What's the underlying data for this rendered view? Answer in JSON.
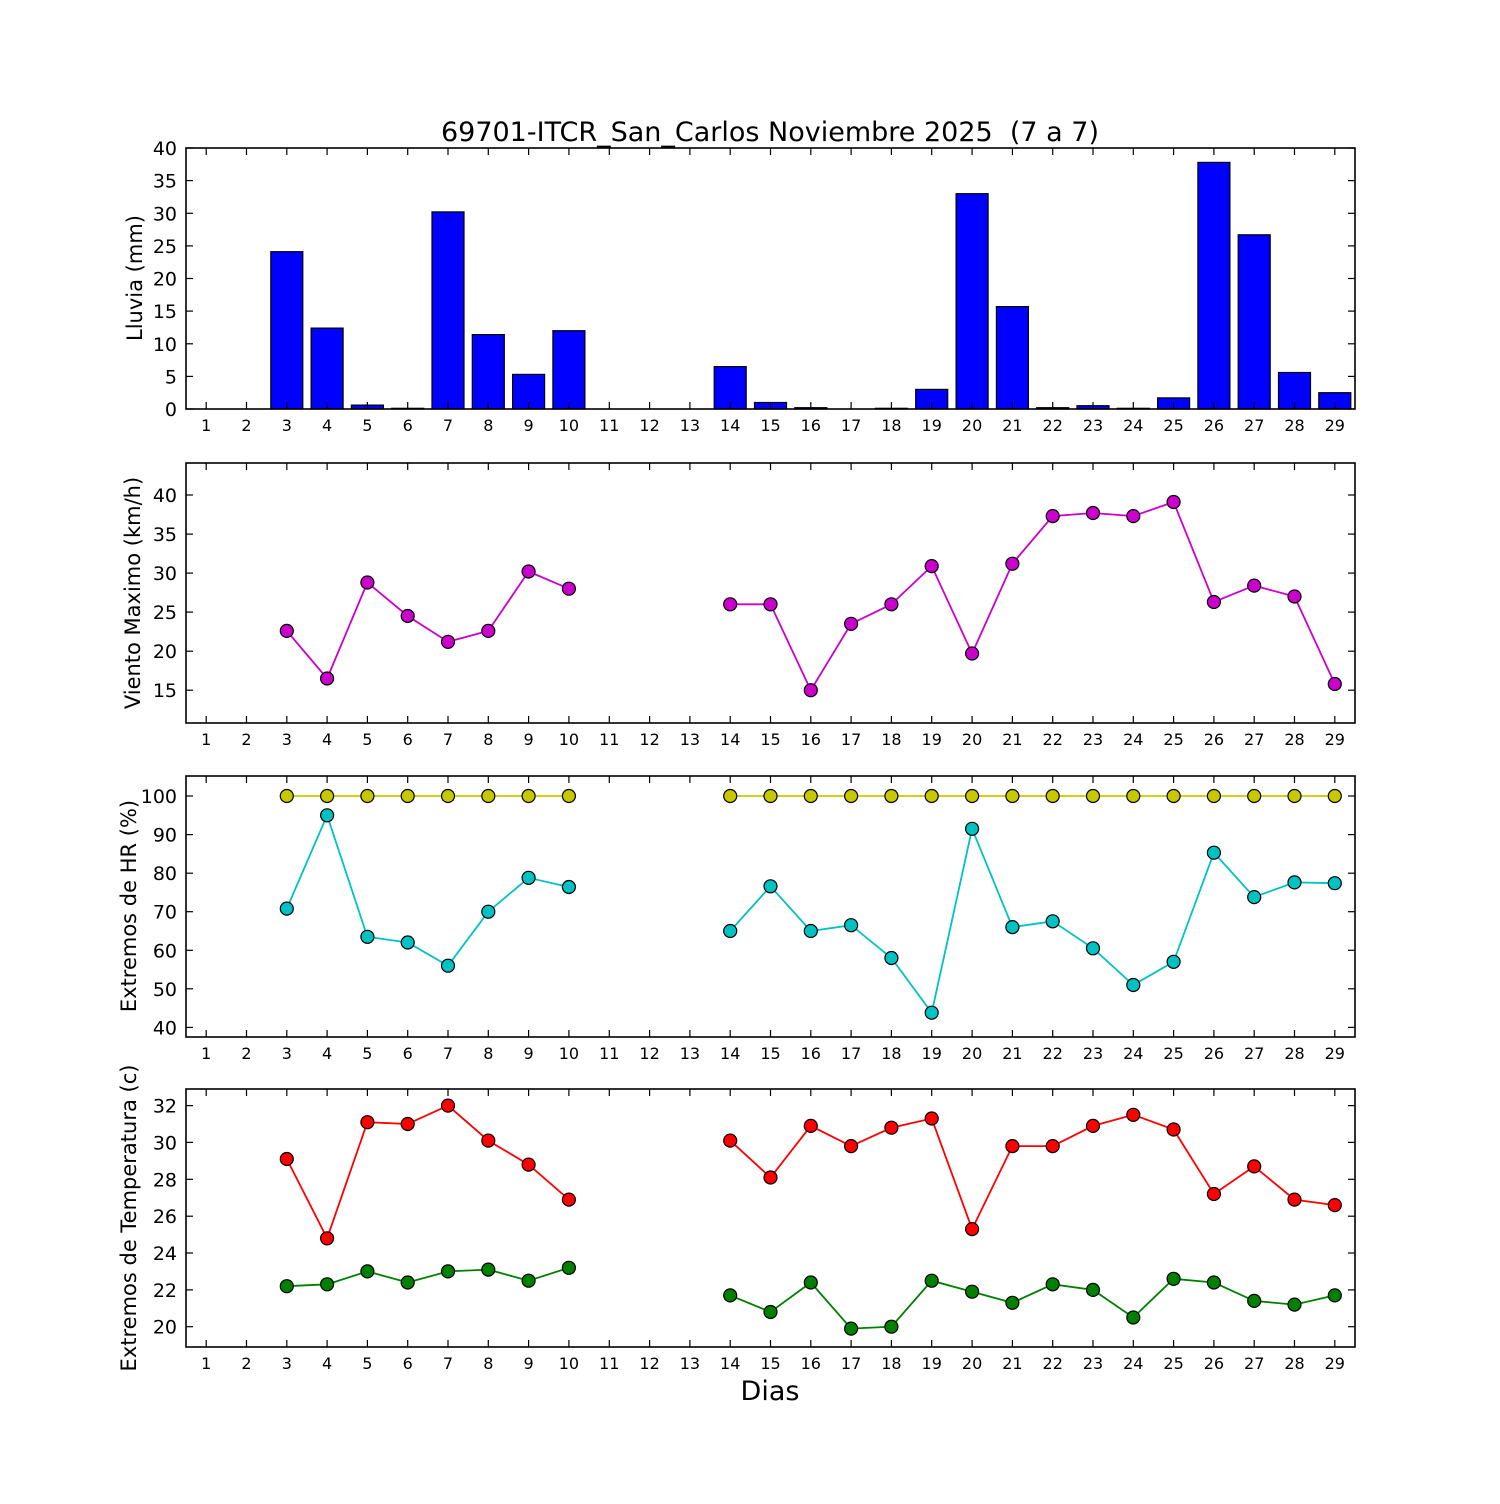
{
  "title": "69701-ITCR_San_Carlos Noviembre 2025  (7 a 7)",
  "xlabel": "Dias",
  "days": [
    1,
    2,
    3,
    4,
    5,
    6,
    7,
    8,
    9,
    10,
    11,
    12,
    13,
    14,
    15,
    16,
    17,
    18,
    19,
    20,
    21,
    22,
    23,
    24,
    25,
    26,
    27,
    28,
    29
  ],
  "chart_data": [
    {
      "type": "bar",
      "ylabel": "Lluvia (mm)",
      "ylim": [
        0,
        40
      ],
      "yticks": [
        0,
        5,
        10,
        15,
        20,
        25,
        30,
        35,
        40
      ],
      "grid": false,
      "legend": "none",
      "bar_color": "#0000ff",
      "bar_edge_color": "#000000",
      "values": [
        0,
        0,
        24.1,
        12.4,
        0.6,
        0.1,
        30.2,
        11.4,
        5.3,
        12.0,
        0,
        0,
        0,
        6.5,
        1.0,
        0.2,
        0,
        0.1,
        3.0,
        33.0,
        15.7,
        0.2,
        0.5,
        0.1,
        1.7,
        37.8,
        26.7,
        5.6,
        2.5
      ]
    },
    {
      "type": "line",
      "ylabel": "Viento Maximo (km/h)",
      "ylim": [
        10.8,
        44.1
      ],
      "yticks": [
        15,
        20,
        25,
        30,
        35,
        40
      ],
      "grid": false,
      "legend": "none",
      "series": [
        {
          "name": "viento-maximo",
          "color": "#cc00cc",
          "marker_edge_color": "#000000",
          "values": [
            null,
            null,
            22.6,
            16.5,
            28.8,
            24.5,
            21.2,
            22.6,
            30.2,
            28.0,
            null,
            null,
            null,
            26.0,
            26.0,
            15.0,
            23.5,
            26.0,
            30.9,
            19.7,
            31.2,
            37.3,
            37.7,
            37.3,
            39.1,
            26.3,
            28.4,
            27.0,
            15.8
          ]
        }
      ]
    },
    {
      "type": "line",
      "ylabel": "Extremos de HR (%)",
      "ylim": [
        37.5,
        105.2
      ],
      "yticks": [
        40,
        50,
        60,
        70,
        80,
        90,
        100
      ],
      "grid": false,
      "legend": "none",
      "series": [
        {
          "name": "hr-maxima",
          "color": "#c8c800",
          "marker_edge_color": "#000000",
          "values": [
            null,
            null,
            100,
            100,
            100,
            100,
            100,
            100,
            100,
            100,
            null,
            null,
            null,
            100,
            100,
            100,
            100,
            100,
            100,
            100,
            100,
            100,
            100,
            100,
            100,
            100,
            100,
            100,
            100
          ]
        },
        {
          "name": "hr-minima",
          "color": "#00c2c2",
          "marker_edge_color": "#000000",
          "values": [
            null,
            null,
            70.8,
            95.0,
            63.5,
            62.0,
            56.0,
            70.0,
            78.8,
            76.4,
            null,
            null,
            null,
            65.0,
            76.6,
            65.0,
            66.5,
            58.0,
            43.8,
            91.5,
            66.0,
            67.5,
            60.5,
            51.0,
            57.0,
            85.3,
            73.8,
            77.6,
            77.4
          ]
        }
      ]
    },
    {
      "type": "line",
      "ylabel": "Extremos de Temperatura (c)",
      "ylim": [
        18.9,
        32.9
      ],
      "yticks": [
        20,
        22,
        24,
        26,
        28,
        30,
        32
      ],
      "grid": false,
      "legend": "none",
      "series": [
        {
          "name": "temperatura-maxima",
          "color": "#ff0000",
          "marker_edge_color": "#000000",
          "values": [
            null,
            null,
            29.1,
            24.8,
            31.1,
            31.0,
            32.0,
            30.1,
            28.8,
            26.9,
            null,
            null,
            null,
            30.1,
            28.1,
            30.9,
            29.8,
            30.8,
            31.3,
            25.3,
            29.8,
            29.8,
            30.9,
            31.5,
            30.7,
            27.2,
            28.7,
            26.9,
            26.6
          ]
        },
        {
          "name": "temperatura-minima",
          "color": "#008000",
          "marker_edge_color": "#000000",
          "values": [
            null,
            null,
            22.2,
            22.3,
            23.0,
            22.4,
            23.0,
            23.1,
            22.5,
            23.2,
            null,
            null,
            null,
            21.7,
            20.8,
            22.4,
            19.9,
            20.0,
            22.5,
            21.9,
            21.3,
            22.3,
            22.0,
            20.5,
            22.6,
            22.4,
            21.4,
            21.2,
            21.7
          ]
        }
      ]
    }
  ]
}
